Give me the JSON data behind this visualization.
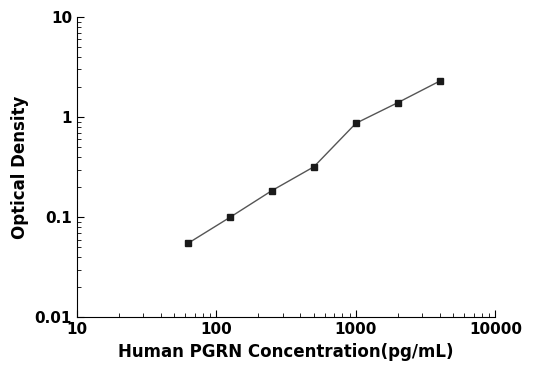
{
  "x": [
    62.5,
    125,
    250,
    500,
    1000,
    2000,
    4000
  ],
  "y": [
    0.055,
    0.1,
    0.185,
    0.32,
    0.87,
    1.4,
    2.3
  ],
  "xlim": [
    10,
    10000
  ],
  "ylim": [
    0.01,
    10
  ],
  "xlabel": "Human PGRN Concentration(pg/mL)",
  "ylabel": "Optical Density",
  "marker": "s",
  "marker_color": "#1a1a1a",
  "line_color": "#555555",
  "marker_size": 5,
  "line_width": 1.0,
  "background_color": "#ffffff",
  "xticks": [
    10,
    100,
    1000,
    10000
  ],
  "xtick_labels": [
    "10",
    "100",
    "1000",
    "10000"
  ],
  "yticks": [
    0.01,
    0.1,
    1,
    10
  ],
  "ytick_labels": [
    "0.01",
    "0.1",
    "1",
    "10"
  ],
  "xlabel_fontsize": 12,
  "ylabel_fontsize": 12,
  "tick_fontsize": 11
}
